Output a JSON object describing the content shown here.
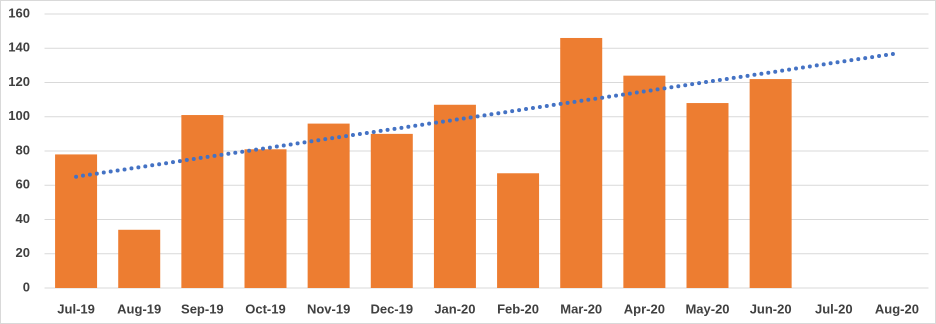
{
  "chart_data": {
    "type": "bar",
    "categories": [
      "Jul-19",
      "Aug-19",
      "Sep-19",
      "Oct-19",
      "Nov-19",
      "Dec-19",
      "Jan-20",
      "Feb-20",
      "Mar-20",
      "Apr-20",
      "May-20",
      "Jun-20",
      "Jul-20",
      "Aug-20"
    ],
    "values": [
      78,
      34,
      101,
      81,
      96,
      90,
      107,
      67,
      146,
      124,
      108,
      122,
      null,
      null
    ],
    "color": "#ed7d31",
    "trendline": {
      "color": "#4472c4",
      "values": [
        65,
        70.5,
        76.1,
        81.6,
        87.2,
        92.7,
        98.2,
        103.8,
        109.3,
        114.8,
        120.4,
        125.9,
        131.5,
        137
      ]
    },
    "ylim": [
      0,
      160
    ],
    "yticks": [
      0,
      20,
      40,
      60,
      80,
      100,
      120,
      140,
      160
    ],
    "grid": true
  }
}
